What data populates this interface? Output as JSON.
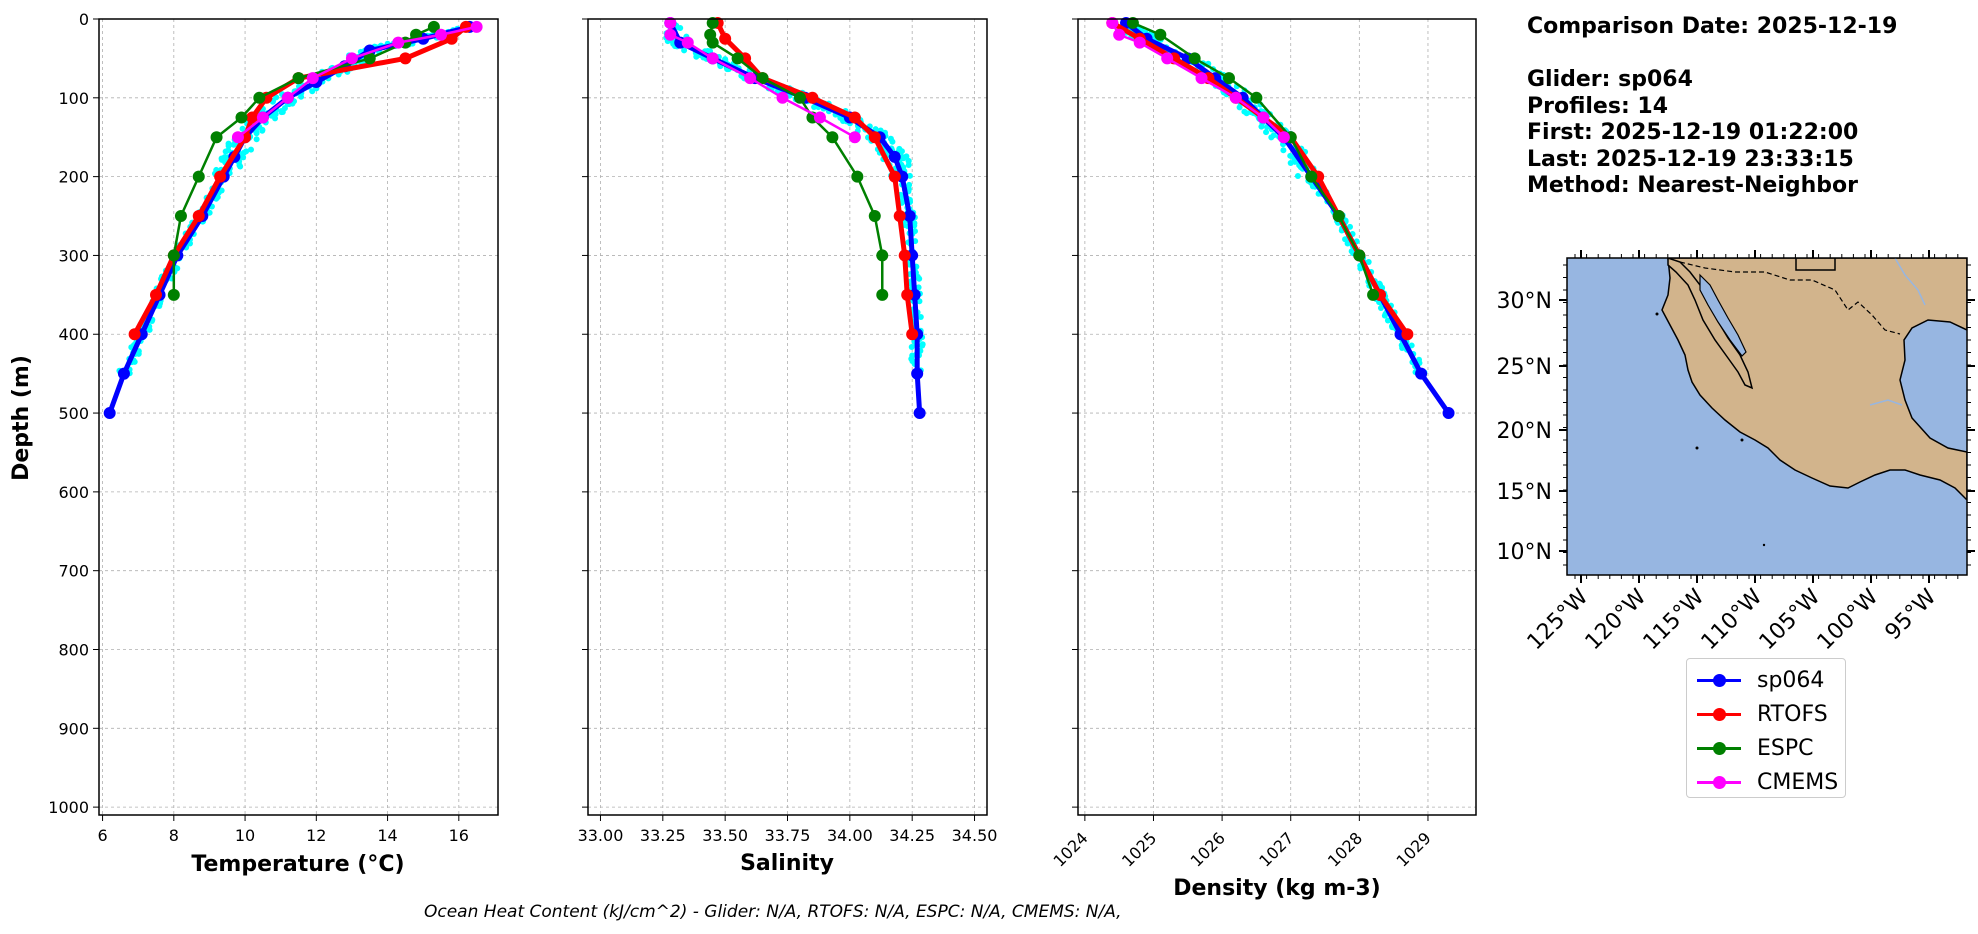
{
  "info": {
    "comparison_date": "Comparison Date: 2025-12-19",
    "glider": "Glider: sp064",
    "profiles": "Profiles: 14",
    "first": "First: 2025-12-19 01:22:00",
    "last": "Last: 2025-12-19 23:33:15",
    "method": "Method: Nearest-Neighbor"
  },
  "footer": "Ocean Heat Content (kJ/cm^2) - Glider: N/A,  RTOFS: N/A,  ESPC: N/A,  CMEMS: N/A,",
  "colors": {
    "sp064": "#0000ff",
    "RTOFS": "#ff0000",
    "ESPC": "#008000",
    "CMEMS": "#ff00ff",
    "profiles_scatter": "#00ffff",
    "land": "#d2b48c",
    "ocean": "#97b6e1",
    "grid": "#b0b0b0"
  },
  "legend": [
    {
      "name": "sp064",
      "color": "#0000ff"
    },
    {
      "name": "RTOFS",
      "color": "#ff0000"
    },
    {
      "name": "ESPC",
      "color": "#008000"
    },
    {
      "name": "CMEMS",
      "color": "#ff00ff"
    }
  ],
  "chart_data": [
    {
      "type": "line",
      "xlabel": "Temperature (°C)",
      "ylabel": "Depth (m)",
      "xlim": [
        5.9,
        17.1
      ],
      "ylim": [
        1010,
        0
      ],
      "xticks": [
        "6",
        "8",
        "10",
        "12",
        "14",
        "16"
      ],
      "yticks": [
        "0",
        "100",
        "200",
        "300",
        "400",
        "500",
        "600",
        "700",
        "800",
        "900",
        "1000"
      ],
      "grid": true,
      "series": [
        {
          "name": "sp064",
          "depth": [
            10,
            25,
            40,
            60,
            80,
            100,
            125,
            150,
            175,
            200,
            250,
            300,
            350,
            400,
            450,
            500
          ],
          "values": [
            16.3,
            15.0,
            13.5,
            12.8,
            12.0,
            11.2,
            10.5,
            10.0,
            9.7,
            9.4,
            8.8,
            8.1,
            7.6,
            7.1,
            6.6,
            6.2
          ]
        },
        {
          "name": "RTOFS",
          "depth": [
            10,
            25,
            50,
            75,
            100,
            125,
            150,
            200,
            250,
            300,
            350,
            400
          ],
          "values": [
            16.2,
            15.8,
            14.5,
            11.5,
            10.6,
            10.2,
            10.0,
            9.3,
            8.7,
            8.0,
            7.5,
            6.9
          ]
        },
        {
          "name": "ESPC",
          "depth": [
            10,
            20,
            30,
            50,
            75,
            100,
            125,
            150,
            200,
            250,
            300,
            350
          ],
          "values": [
            15.3,
            14.8,
            14.5,
            13.5,
            11.5,
            10.4,
            9.9,
            9.2,
            8.7,
            8.2,
            8.0,
            8.0
          ]
        },
        {
          "name": "CMEMS",
          "depth": [
            10,
            20,
            30,
            50,
            75,
            100,
            125,
            150
          ],
          "values": [
            16.5,
            15.5,
            14.3,
            13.0,
            11.9,
            11.2,
            10.5,
            9.8
          ]
        }
      ]
    },
    {
      "type": "line",
      "xlabel": "Salinity",
      "xlim": [
        32.95,
        34.55
      ],
      "ylim": [
        1010,
        0
      ],
      "xticks": [
        "33.00",
        "33.25",
        "33.50",
        "33.75",
        "34.00",
        "34.25",
        "34.50"
      ],
      "grid": true,
      "series": [
        {
          "name": "sp064",
          "depth": [
            5,
            30,
            50,
            75,
            100,
            125,
            150,
            175,
            200,
            250,
            300,
            350,
            400,
            450,
            500
          ],
          "values": [
            33.28,
            33.32,
            33.45,
            33.62,
            33.82,
            34.0,
            34.12,
            34.18,
            34.21,
            34.24,
            34.25,
            34.26,
            34.27,
            34.27,
            34.28
          ]
        },
        {
          "name": "RTOFS",
          "depth": [
            5,
            25,
            50,
            75,
            100,
            125,
            150,
            200,
            250,
            300,
            350,
            400
          ],
          "values": [
            33.47,
            33.5,
            33.58,
            33.65,
            33.85,
            34.02,
            34.1,
            34.18,
            34.2,
            34.22,
            34.23,
            34.25
          ]
        },
        {
          "name": "ESPC",
          "depth": [
            5,
            20,
            30,
            50,
            75,
            100,
            125,
            150,
            200,
            250,
            300,
            350
          ],
          "values": [
            33.45,
            33.44,
            33.45,
            33.55,
            33.65,
            33.8,
            33.85,
            33.93,
            34.03,
            34.1,
            34.13,
            34.13
          ]
        },
        {
          "name": "CMEMS",
          "depth": [
            5,
            20,
            30,
            50,
            75,
            100,
            125,
            150
          ],
          "values": [
            33.28,
            33.28,
            33.35,
            33.45,
            33.6,
            33.73,
            33.88,
            34.02
          ]
        }
      ]
    },
    {
      "type": "line",
      "xlabel": "Density (kg m-3)",
      "xlim": [
        1023.9,
        1029.7
      ],
      "ylim": [
        1010,
        0
      ],
      "xticks": [
        "1024",
        "1025",
        "1026",
        "1027",
        "1028",
        "1029"
      ],
      "grid": true,
      "series": [
        {
          "name": "sp064",
          "depth": [
            5,
            25,
            50,
            75,
            100,
            125,
            150,
            200,
            250,
            300,
            350,
            400,
            450,
            500
          ],
          "values": [
            1024.6,
            1024.9,
            1025.5,
            1025.9,
            1026.3,
            1026.6,
            1026.9,
            1027.3,
            1027.7,
            1028.0,
            1028.3,
            1028.6,
            1028.9,
            1029.3
          ]
        },
        {
          "name": "RTOFS",
          "depth": [
            5,
            25,
            50,
            75,
            100,
            150,
            200,
            250,
            300,
            350,
            400
          ],
          "values": [
            1024.4,
            1024.8,
            1025.3,
            1025.8,
            1026.2,
            1027.0,
            1027.4,
            1027.7,
            1028.0,
            1028.3,
            1028.7
          ]
        },
        {
          "name": "ESPC",
          "depth": [
            5,
            20,
            50,
            75,
            100,
            150,
            200,
            250,
            300,
            350
          ],
          "values": [
            1024.7,
            1025.1,
            1025.6,
            1026.1,
            1026.5,
            1027.0,
            1027.3,
            1027.7,
            1028.0,
            1028.2
          ]
        },
        {
          "name": "CMEMS",
          "depth": [
            5,
            20,
            30,
            50,
            75,
            100,
            125,
            150
          ],
          "values": [
            1024.4,
            1024.5,
            1024.8,
            1025.2,
            1025.7,
            1026.2,
            1026.6,
            1026.9
          ]
        }
      ]
    }
  ],
  "map": {
    "lat_ticks": [
      "30°N",
      "25°N",
      "20°N",
      "15°N",
      "10°N"
    ],
    "lon_ticks": [
      "125°W",
      "120°W",
      "115°W",
      "110°W",
      "105°W",
      "100°W",
      "95°W"
    ]
  }
}
